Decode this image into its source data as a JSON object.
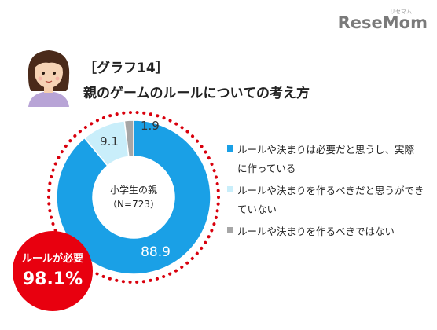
{
  "brand": {
    "logo_text": "ReseMom",
    "logo_ruby": "リセマム"
  },
  "header": {
    "title_line1": "［グラフ14］",
    "title_line2": "親のゲームのルールについての考え方"
  },
  "center": {
    "line1": "小学生の親",
    "line2": "（N=723）"
  },
  "badge": {
    "label": "ルールが必要",
    "value": "98.1%"
  },
  "chart_data": {
    "type": "pie",
    "title": "［グラフ14］ 親のゲームのルールについての考え方",
    "categories": [
      "ルールや決まりは必要だと思うし、実際に作っている",
      "ルールや決まりを作るべきだと思うができていない",
      "ルールや決まりを作るべきではない"
    ],
    "values": [
      88.9,
      9.1,
      1.9
    ],
    "value_labels": [
      "88.9",
      "9.1",
      "1.9"
    ],
    "legend_lines": [
      [
        "ルールや決まりは必要だと思うし、実際",
        "に作っている"
      ],
      [
        "ルールや決まりを作るべきだと思うができ",
        "ていない"
      ],
      [
        "ルールや決まりを作るべきではない"
      ]
    ],
    "colors": [
      "#1aa0e6",
      "#c9eefa",
      "#a6a6a6"
    ],
    "label_colors": [
      "#ffffff",
      "#333333",
      "#333333"
    ],
    "legend_position": "right",
    "donut": true,
    "dotted_ring_color": "#d9000d",
    "badge_color": "#e8000f"
  }
}
